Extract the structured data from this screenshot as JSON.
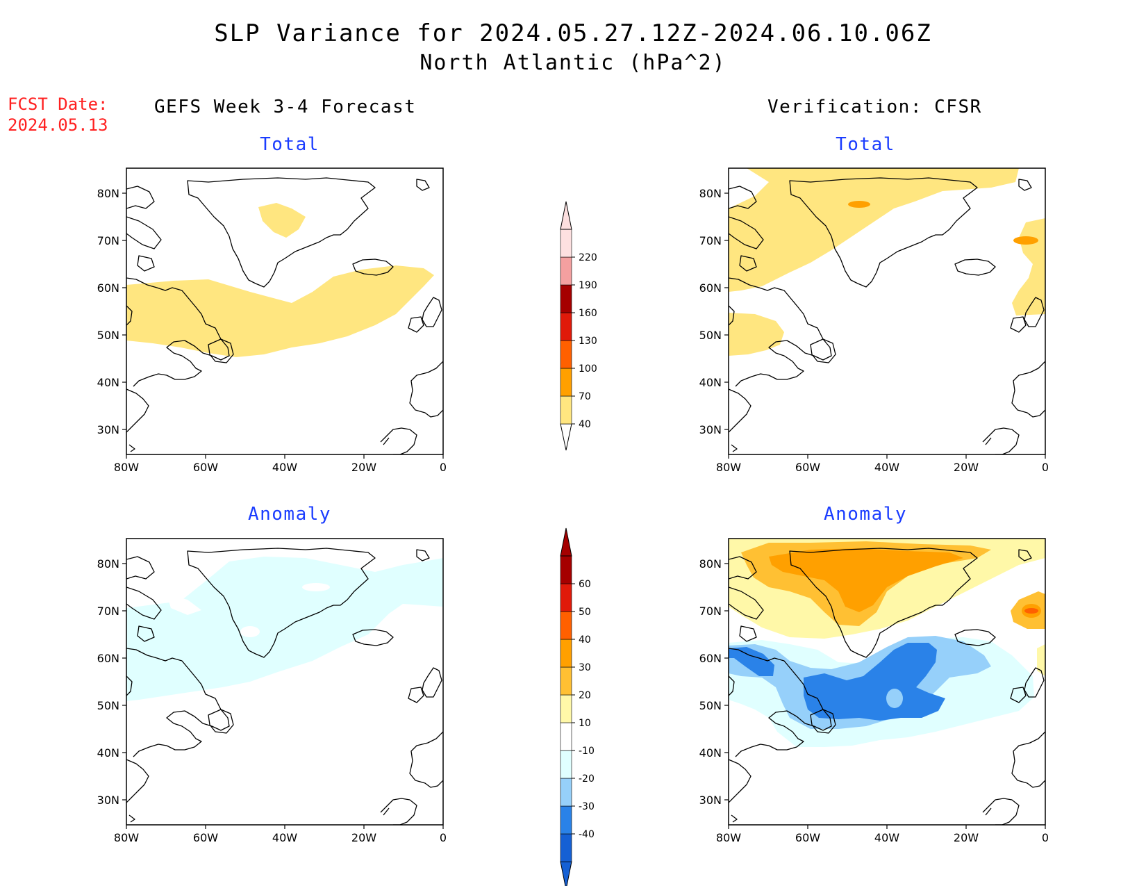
{
  "title_line1": "SLP Variance for 2024.05.27.12Z-2024.06.10.06Z",
  "title_line2": "North Atlantic (hPa^2)",
  "fcst_label": "FCST Date:",
  "fcst_date": "2024.05.13",
  "left_header": "GEFS Week 3-4 Forecast",
  "right_header": "Verification: CFSR",
  "panel_subtitles": {
    "top_left": "Total",
    "top_right": "Total",
    "bottom_left": "Anomaly",
    "bottom_right": "Anomaly"
  },
  "lat_labels": [
    "80N",
    "70N",
    "60N",
    "50N",
    "40N",
    "30N"
  ],
  "lon_labels": [
    "80W",
    "60W",
    "40W",
    "20W",
    "0"
  ],
  "total_colorbar": {
    "labels": [
      "40",
      "70",
      "100",
      "130",
      "160",
      "190",
      "220"
    ],
    "colors": [
      "#ffe680",
      "#ffa000",
      "#ff6000",
      "#e01a0a",
      "#a50000",
      "#f4a0a0",
      "#fde0e0"
    ]
  },
  "anomaly_colorbar": {
    "labels": [
      "-40",
      "-30",
      "-20",
      "-10",
      "10",
      "20",
      "30",
      "40",
      "50",
      "60"
    ],
    "colors": [
      "#1560d4",
      "#2a82e8",
      "#96d0fa",
      "#e0ffff",
      "#ffffff",
      "#fff8a8",
      "#ffc033",
      "#ffa000",
      "#ff6000",
      "#e01a0a",
      "#a50000"
    ]
  }
}
